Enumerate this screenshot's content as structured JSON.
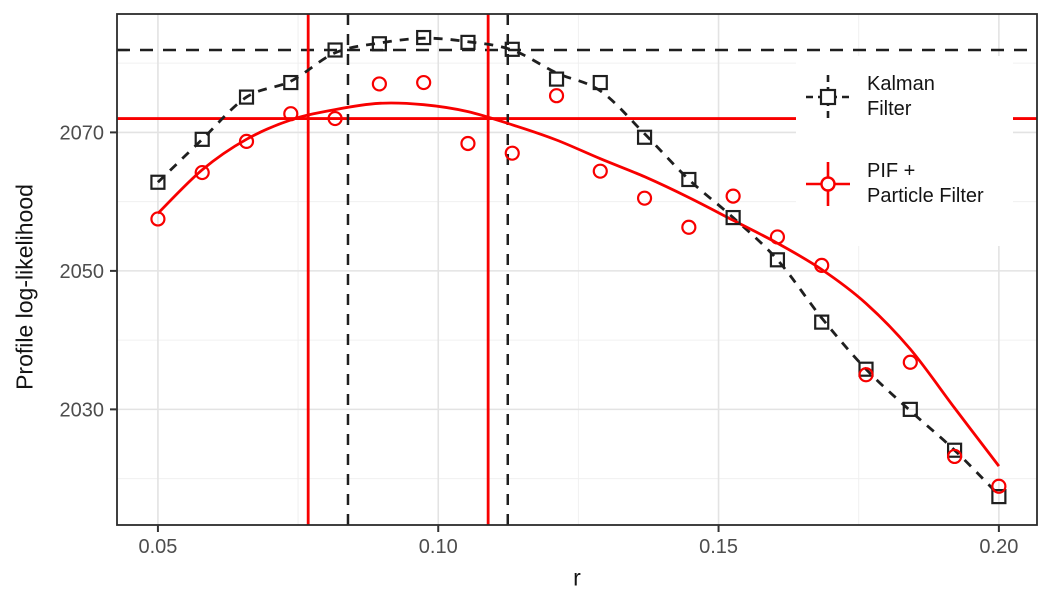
{
  "figure": {
    "y_axis_title": "Profile log-likelihood",
    "x_axis_title": "r"
  },
  "legend": {
    "position": "inside-right",
    "items": [
      {
        "id": "kalman",
        "label": "Kalman\nFilter",
        "color": "#1f1f1f",
        "marker": "open-square",
        "line_style": "dashed"
      },
      {
        "id": "pif",
        "label": "PIF +\nParticle Filter",
        "color": "#f80000",
        "marker": "open-circle",
        "line_style": "solid"
      }
    ]
  },
  "chart_data": {
    "type": "scatter",
    "title": "",
    "xlabel": "r",
    "ylabel": "Profile log-likelihood",
    "x_range": [
      0.0427,
      0.2068
    ],
    "y_range": [
      2013.3,
      2087.1
    ],
    "x_ticks": [
      0.05,
      0.1,
      0.15,
      0.2
    ],
    "x_tick_labels": [
      "0.05",
      "0.10",
      "0.15",
      "0.20"
    ],
    "x_minor_ticks": [
      0.075,
      0.125,
      0.175
    ],
    "y_ticks": [
      2030,
      2050,
      2070
    ],
    "y_tick_labels": [
      "2030",
      "2050",
      "2070"
    ],
    "y_minor_ticks": [
      2020,
      2040,
      2060,
      2080
    ],
    "grid": true,
    "legend_position": "inside-right",
    "r": [
      0.05,
      0.0579,
      0.0658,
      0.0737,
      0.0816,
      0.0895,
      0.0974,
      0.1053,
      0.1132,
      0.1211,
      0.1289,
      0.1368,
      0.1447,
      0.1526,
      0.1605,
      0.1684,
      0.1763,
      0.1842,
      0.1921,
      0.2
    ],
    "series": [
      {
        "name": "Kalman Filter",
        "color": "#1f1f1f",
        "marker": "open-square",
        "line": "dashed-smooth",
        "values": [
          2062.8,
          2069.0,
          2075.1,
          2077.2,
          2081.9,
          2082.8,
          2083.7,
          2083.0,
          2082.0,
          2077.7,
          2077.2,
          2069.3,
          2063.2,
          2057.7,
          2051.6,
          2042.6,
          2035.8,
          2030.0,
          2024.1,
          2017.4
        ],
        "smooth_values": [
          2062.8,
          2069.0,
          2075.1,
          2077.4,
          2081.5,
          2082.9,
          2083.6,
          2083.1,
          2081.9,
          2078.6,
          2076.0,
          2069.8,
          2063.2,
          2057.7,
          2051.6,
          2043.2,
          2035.8,
          2029.8,
          2024.1,
          2017.6
        ]
      },
      {
        "name": "PIF + Particle Filter",
        "color": "#f80000",
        "marker": "open-circle",
        "line": "solid-smooth",
        "values": [
          2057.5,
          2064.2,
          2068.7,
          2072.7,
          2072.0,
          2077.0,
          2077.2,
          2068.4,
          2067.0,
          2075.3,
          2064.4,
          2060.5,
          2056.3,
          2060.8,
          2054.9,
          2050.8,
          2035.0,
          2036.8,
          2023.2,
          2018.9
        ],
        "smooth_values": [
          2058.3,
          2064.6,
          2069.0,
          2071.8,
          2073.3,
          2074.2,
          2074.0,
          2073.0,
          2071.1,
          2068.9,
          2066.2,
          2063.6,
          2060.6,
          2057.3,
          2054.0,
          2050.2,
          2045.3,
          2038.7,
          2030.2,
          2021.8
        ]
      }
    ],
    "reference_lines": {
      "kalman_max_hline": {
        "y": 2081.9,
        "style": "dashed",
        "color": "#1f1f1f"
      },
      "pif_max_hline": {
        "y": 2072.0,
        "style": "solid",
        "color": "#f80000"
      },
      "kalman_ci_vlines": {
        "x": [
          0.0839,
          0.1124
        ],
        "style": "dashed",
        "color": "#1f1f1f"
      },
      "pif_ci_vlines": {
        "x": [
          0.0768,
          0.1089
        ],
        "style": "solid",
        "color": "#f80000"
      }
    },
    "style": {
      "grid_major_color": "#e3e3e3",
      "grid_minor_color": "#f0f0f0",
      "panel_border_color": "#2b2b2b",
      "axis_text_color": "#4d4d4d"
    }
  }
}
